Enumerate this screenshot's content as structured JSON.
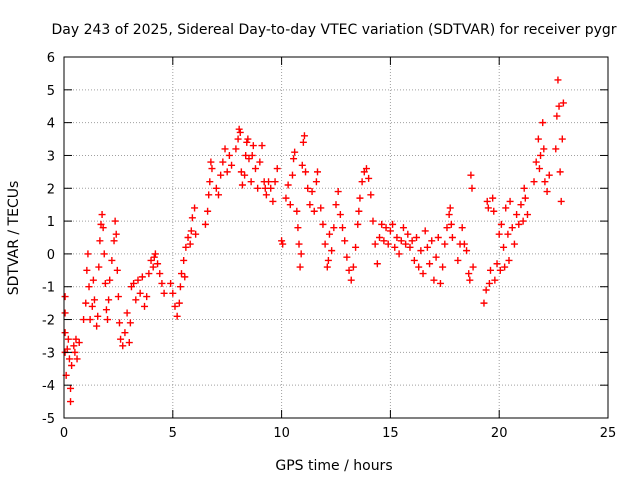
{
  "chart_data": {
    "type": "scatter",
    "title": "Day 243 of 2025, Sidereal Day-to-day VTEC variation (SDTVAR) for receiver pygr",
    "xlabel": "GPS time / hours",
    "ylabel": "SDTVAR / TECUs",
    "xlim": [
      0,
      25
    ],
    "ylim": [
      -5,
      6
    ],
    "xticks": [
      0,
      5,
      10,
      15,
      20,
      25
    ],
    "yticks": [
      -5,
      -4,
      -3,
      -2,
      -1,
      0,
      1,
      2,
      3,
      4,
      5,
      6
    ],
    "grid": true,
    "marker": "+",
    "series": [
      {
        "name": "SDTVAR",
        "color": "#ff0000",
        "points": [
          [
            0.05,
            -1.3
          ],
          [
            0.05,
            -1.8
          ],
          [
            0.05,
            -2.4
          ],
          [
            0.05,
            -3.0
          ],
          [
            0.1,
            -3.7
          ],
          [
            0.15,
            -2.9
          ],
          [
            0.2,
            -2.6
          ],
          [
            0.25,
            -3.2
          ],
          [
            0.3,
            -4.1
          ],
          [
            0.3,
            -4.5
          ],
          [
            0.35,
            -3.4
          ],
          [
            0.45,
            -2.8
          ],
          [
            0.5,
            -3.0
          ],
          [
            0.55,
            -2.6
          ],
          [
            0.6,
            -3.2
          ],
          [
            0.7,
            -2.7
          ],
          [
            0.9,
            -2.0
          ],
          [
            1.0,
            -1.5
          ],
          [
            1.05,
            -0.5
          ],
          [
            1.1,
            0.0
          ],
          [
            1.15,
            -1.0
          ],
          [
            1.2,
            -2.0
          ],
          [
            1.3,
            -1.6
          ],
          [
            1.35,
            -0.8
          ],
          [
            1.4,
            -1.4
          ],
          [
            1.5,
            -2.2
          ],
          [
            1.55,
            -1.9
          ],
          [
            1.6,
            -0.4
          ],
          [
            1.65,
            0.4
          ],
          [
            1.7,
            0.9
          ],
          [
            1.75,
            1.2
          ],
          [
            1.8,
            0.8
          ],
          [
            1.85,
            0.0
          ],
          [
            1.9,
            -0.9
          ],
          [
            1.95,
            -1.7
          ],
          [
            2.0,
            -2.0
          ],
          [
            2.05,
            -1.4
          ],
          [
            2.1,
            -0.8
          ],
          [
            2.2,
            -0.2
          ],
          [
            2.3,
            0.4
          ],
          [
            2.35,
            1.0
          ],
          [
            2.4,
            0.6
          ],
          [
            2.45,
            -0.5
          ],
          [
            2.5,
            -1.3
          ],
          [
            2.55,
            -2.1
          ],
          [
            2.6,
            -2.6
          ],
          [
            2.7,
            -2.8
          ],
          [
            2.8,
            -2.4
          ],
          [
            2.9,
            -1.8
          ],
          [
            3.0,
            -2.7
          ],
          [
            3.05,
            -2.1
          ],
          [
            3.1,
            -1.0
          ],
          [
            3.2,
            -0.9
          ],
          [
            3.3,
            -1.4
          ],
          [
            3.4,
            -0.8
          ],
          [
            3.5,
            -1.2
          ],
          [
            3.6,
            -0.7
          ],
          [
            3.7,
            -1.6
          ],
          [
            3.8,
            -1.3
          ],
          [
            3.9,
            -0.6
          ],
          [
            4.0,
            -0.2
          ],
          [
            4.1,
            -0.4
          ],
          [
            4.15,
            -0.1
          ],
          [
            4.2,
            0.0
          ],
          [
            4.3,
            -0.3
          ],
          [
            4.4,
            -0.6
          ],
          [
            4.5,
            -0.9
          ],
          [
            4.6,
            -1.2
          ],
          [
            4.9,
            -0.9
          ],
          [
            5.0,
            -1.2
          ],
          [
            5.1,
            -1.6
          ],
          [
            5.2,
            -1.9
          ],
          [
            5.3,
            -1.5
          ],
          [
            5.35,
            -1.0
          ],
          [
            5.4,
            -0.6
          ],
          [
            5.5,
            -0.2
          ],
          [
            5.55,
            -0.7
          ],
          [
            5.6,
            0.2
          ],
          [
            5.7,
            0.5
          ],
          [
            5.8,
            0.3
          ],
          [
            5.85,
            0.7
          ],
          [
            5.9,
            1.1
          ],
          [
            6.0,
            1.4
          ],
          [
            6.05,
            0.6
          ],
          [
            6.5,
            0.9
          ],
          [
            6.6,
            1.3
          ],
          [
            6.65,
            1.8
          ],
          [
            6.7,
            2.2
          ],
          [
            6.75,
            2.8
          ],
          [
            6.8,
            2.6
          ],
          [
            7.0,
            2.0
          ],
          [
            7.1,
            1.8
          ],
          [
            7.2,
            2.4
          ],
          [
            7.3,
            2.8
          ],
          [
            7.4,
            3.2
          ],
          [
            7.5,
            2.5
          ],
          [
            7.6,
            3.0
          ],
          [
            7.7,
            2.7
          ],
          [
            7.9,
            3.2
          ],
          [
            8.0,
            3.5
          ],
          [
            8.05,
            3.8
          ],
          [
            8.1,
            3.7
          ],
          [
            8.15,
            2.5
          ],
          [
            8.2,
            2.1
          ],
          [
            8.3,
            2.4
          ],
          [
            8.35,
            3.0
          ],
          [
            8.4,
            3.4
          ],
          [
            8.45,
            3.5
          ],
          [
            8.5,
            2.9
          ],
          [
            8.6,
            2.2
          ],
          [
            8.65,
            3.0
          ],
          [
            8.7,
            3.3
          ],
          [
            8.8,
            2.6
          ],
          [
            8.9,
            2.0
          ],
          [
            9.0,
            2.8
          ],
          [
            9.1,
            3.3
          ],
          [
            9.2,
            2.2
          ],
          [
            9.25,
            2.0
          ],
          [
            9.3,
            1.8
          ],
          [
            9.4,
            2.2
          ],
          [
            9.5,
            2.0
          ],
          [
            9.6,
            1.6
          ],
          [
            9.7,
            2.2
          ],
          [
            9.8,
            2.6
          ],
          [
            10.0,
            0.4
          ],
          [
            10.05,
            0.3
          ],
          [
            10.2,
            1.7
          ],
          [
            10.3,
            2.1
          ],
          [
            10.4,
            1.5
          ],
          [
            10.5,
            2.4
          ],
          [
            10.55,
            2.9
          ],
          [
            10.6,
            3.1
          ],
          [
            10.7,
            1.3
          ],
          [
            10.75,
            0.8
          ],
          [
            10.8,
            0.3
          ],
          [
            10.85,
            -0.4
          ],
          [
            10.9,
            0.0
          ],
          [
            10.95,
            2.7
          ],
          [
            11.0,
            3.4
          ],
          [
            11.05,
            3.6
          ],
          [
            11.1,
            2.5
          ],
          [
            11.2,
            2.0
          ],
          [
            11.3,
            1.5
          ],
          [
            11.4,
            1.9
          ],
          [
            11.5,
            1.3
          ],
          [
            11.6,
            2.2
          ],
          [
            11.65,
            2.5
          ],
          [
            11.8,
            1.4
          ],
          [
            11.9,
            0.9
          ],
          [
            12.0,
            0.3
          ],
          [
            12.1,
            -0.4
          ],
          [
            12.15,
            -0.2
          ],
          [
            12.2,
            0.6
          ],
          [
            12.3,
            0.1
          ],
          [
            12.4,
            0.8
          ],
          [
            12.5,
            1.5
          ],
          [
            12.6,
            1.9
          ],
          [
            12.7,
            1.2
          ],
          [
            12.8,
            0.8
          ],
          [
            12.9,
            0.4
          ],
          [
            13.0,
            -0.1
          ],
          [
            13.1,
            -0.5
          ],
          [
            13.2,
            -0.8
          ],
          [
            13.3,
            -0.4
          ],
          [
            13.4,
            0.2
          ],
          [
            13.5,
            0.9
          ],
          [
            13.55,
            1.3
          ],
          [
            13.6,
            1.7
          ],
          [
            13.7,
            2.2
          ],
          [
            13.8,
            2.5
          ],
          [
            13.9,
            2.6
          ],
          [
            14.0,
            2.3
          ],
          [
            14.1,
            1.8
          ],
          [
            14.2,
            1.0
          ],
          [
            14.3,
            0.3
          ],
          [
            14.4,
            -0.3
          ],
          [
            14.5,
            0.5
          ],
          [
            14.6,
            0.9
          ],
          [
            14.7,
            0.4
          ],
          [
            14.8,
            0.8
          ],
          [
            14.9,
            0.3
          ],
          [
            15.0,
            0.7
          ],
          [
            15.1,
            0.9
          ],
          [
            15.2,
            0.2
          ],
          [
            15.3,
            0.5
          ],
          [
            15.4,
            0.0
          ],
          [
            15.5,
            0.4
          ],
          [
            15.6,
            0.8
          ],
          [
            15.7,
            0.3
          ],
          [
            15.8,
            0.6
          ],
          [
            15.9,
            0.2
          ],
          [
            16.0,
            0.4
          ],
          [
            16.1,
            -0.2
          ],
          [
            16.2,
            0.5
          ],
          [
            16.3,
            -0.4
          ],
          [
            16.4,
            0.1
          ],
          [
            16.5,
            -0.6
          ],
          [
            16.6,
            0.7
          ],
          [
            16.7,
            0.2
          ],
          [
            16.8,
            -0.3
          ],
          [
            16.9,
            0.4
          ],
          [
            17.0,
            -0.8
          ],
          [
            17.1,
            -0.1
          ],
          [
            17.2,
            0.5
          ],
          [
            17.3,
            -0.9
          ],
          [
            17.4,
            -0.4
          ],
          [
            17.5,
            0.3
          ],
          [
            17.6,
            0.8
          ],
          [
            17.7,
            1.2
          ],
          [
            17.75,
            1.4
          ],
          [
            17.8,
            0.9
          ],
          [
            17.85,
            0.5
          ],
          [
            18.1,
            -0.2
          ],
          [
            18.2,
            0.3
          ],
          [
            18.3,
            0.8
          ],
          [
            18.4,
            0.3
          ],
          [
            18.5,
            0.1
          ],
          [
            18.6,
            -0.6
          ],
          [
            18.65,
            -0.8
          ],
          [
            18.7,
            2.4
          ],
          [
            18.75,
            2.0
          ],
          [
            18.8,
            -0.4
          ],
          [
            19.3,
            -1.5
          ],
          [
            19.4,
            -1.1
          ],
          [
            19.45,
            1.6
          ],
          [
            19.5,
            1.4
          ],
          [
            19.55,
            -0.9
          ],
          [
            19.6,
            -0.5
          ],
          [
            19.7,
            1.7
          ],
          [
            19.75,
            1.3
          ],
          [
            19.8,
            -0.8
          ],
          [
            19.9,
            -0.3
          ],
          [
            20.0,
            0.6
          ],
          [
            20.05,
            -0.5
          ],
          [
            20.1,
            0.9
          ],
          [
            20.2,
            0.2
          ],
          [
            20.25,
            -0.4
          ],
          [
            20.3,
            1.4
          ],
          [
            20.4,
            0.6
          ],
          [
            20.45,
            -0.2
          ],
          [
            20.5,
            1.6
          ],
          [
            20.6,
            0.8
          ],
          [
            20.7,
            0.3
          ],
          [
            20.8,
            1.2
          ],
          [
            20.9,
            0.9
          ],
          [
            21.0,
            1.5
          ],
          [
            21.1,
            1.0
          ],
          [
            21.15,
            2.0
          ],
          [
            21.2,
            1.7
          ],
          [
            21.3,
            1.2
          ],
          [
            21.6,
            2.2
          ],
          [
            21.7,
            2.8
          ],
          [
            21.8,
            3.5
          ],
          [
            21.85,
            2.6
          ],
          [
            21.9,
            3.0
          ],
          [
            22.0,
            4.0
          ],
          [
            22.05,
            3.2
          ],
          [
            22.1,
            2.2
          ],
          [
            22.2,
            1.9
          ],
          [
            22.3,
            2.4
          ],
          [
            22.6,
            3.2
          ],
          [
            22.65,
            4.2
          ],
          [
            22.7,
            5.3
          ],
          [
            22.75,
            4.5
          ],
          [
            22.8,
            2.5
          ],
          [
            22.85,
            1.6
          ],
          [
            22.9,
            3.5
          ],
          [
            22.95,
            4.6
          ]
        ]
      }
    ]
  }
}
